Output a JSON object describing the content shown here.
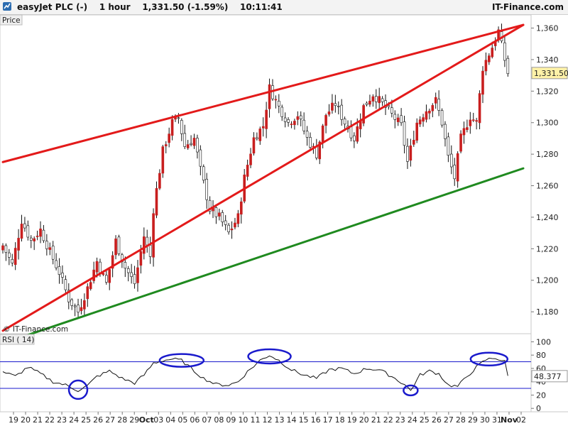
{
  "header": {
    "symbol": "easyJet PLC (-)",
    "interval": "1 hour",
    "last": "1,331.50",
    "change": "(-1.59%)",
    "time": "10:11:41",
    "brand": "IT-Finance.com"
  },
  "price_panel": {
    "label": "Price",
    "watermark": "© IT-Finance.com",
    "last_price_badge": "1,331.50"
  },
  "rsi_panel": {
    "label": "RSI ( 14)",
    "value_badge": "48.377"
  },
  "colors": {
    "upper_trend": "#e31a1a",
    "lower_trend": "#1f8a1f",
    "highlight": "#1a1acc",
    "bull": "#c81e1e",
    "bear": "#111111"
  },
  "chart_data": [
    {
      "type": "candlestick",
      "title": "",
      "xlabel": "",
      "ylabel": "",
      "ylim": [
        1167,
        1367
      ],
      "y_ticks": [
        "1,180",
        "1,200",
        "1,220",
        "1,240",
        "1,260",
        "1,280",
        "1,300",
        "1,320",
        "1,340",
        "1,360"
      ],
      "y_tick_values": [
        1180,
        1200,
        1220,
        1240,
        1260,
        1280,
        1300,
        1320,
        1340,
        1360
      ],
      "x_ticks": [
        "19",
        "20",
        "21",
        "22",
        "23",
        "24",
        "25",
        "26",
        "27",
        "28",
        "29",
        "Oct",
        "03",
        "04",
        "05",
        "06",
        "07",
        "08",
        "09",
        "10",
        "11",
        "12",
        "13",
        "14",
        "15",
        "16",
        "17",
        "18",
        "19",
        "20",
        "21",
        "22",
        "23",
        "24",
        "25",
        "26",
        "27",
        "28",
        "29",
        "30",
        "31",
        "Nov",
        "02"
      ],
      "close_path": [
        {
          "i": 0,
          "p": 1222
        },
        {
          "i": 3,
          "p": 1210
        },
        {
          "i": 6,
          "p": 1238
        },
        {
          "i": 9,
          "p": 1225
        },
        {
          "i": 12,
          "p": 1232
        },
        {
          "i": 15,
          "p": 1218
        },
        {
          "i": 18,
          "p": 1205
        },
        {
          "i": 21,
          "p": 1188
        },
        {
          "i": 24,
          "p": 1180
        },
        {
          "i": 27,
          "p": 1195
        },
        {
          "i": 30,
          "p": 1212
        },
        {
          "i": 33,
          "p": 1198
        },
        {
          "i": 36,
          "p": 1225
        },
        {
          "i": 39,
          "p": 1208
        },
        {
          "i": 42,
          "p": 1198
        },
        {
          "i": 45,
          "p": 1228
        },
        {
          "i": 47,
          "p": 1215
        },
        {
          "i": 48,
          "p": 1245
        },
        {
          "i": 51,
          "p": 1282
        },
        {
          "i": 54,
          "p": 1300
        },
        {
          "i": 56,
          "p": 1303
        },
        {
          "i": 58,
          "p": 1285
        },
        {
          "i": 61,
          "p": 1290
        },
        {
          "i": 63,
          "p": 1270
        },
        {
          "i": 66,
          "p": 1245
        },
        {
          "i": 69,
          "p": 1240
        },
        {
          "i": 72,
          "p": 1230
        },
        {
          "i": 75,
          "p": 1240
        },
        {
          "i": 77,
          "p": 1265
        },
        {
          "i": 80,
          "p": 1290
        },
        {
          "i": 83,
          "p": 1298
        },
        {
          "i": 85,
          "p": 1322
        },
        {
          "i": 88,
          "p": 1310
        },
        {
          "i": 91,
          "p": 1300
        },
        {
          "i": 94,
          "p": 1305
        },
        {
          "i": 97,
          "p": 1290
        },
        {
          "i": 100,
          "p": 1280
        },
        {
          "i": 103,
          "p": 1305
        },
        {
          "i": 106,
          "p": 1312
        },
        {
          "i": 109,
          "p": 1300
        },
        {
          "i": 112,
          "p": 1290
        },
        {
          "i": 115,
          "p": 1310
        },
        {
          "i": 118,
          "p": 1318
        },
        {
          "i": 121,
          "p": 1312
        },
        {
          "i": 124,
          "p": 1305
        },
        {
          "i": 127,
          "p": 1298
        },
        {
          "i": 129,
          "p": 1275
        },
        {
          "i": 132,
          "p": 1300
        },
        {
          "i": 135,
          "p": 1308
        },
        {
          "i": 138,
          "p": 1314
        },
        {
          "i": 140,
          "p": 1300
        },
        {
          "i": 142,
          "p": 1278
        },
        {
          "i": 144,
          "p": 1265
        },
        {
          "i": 146,
          "p": 1290
        },
        {
          "i": 149,
          "p": 1304
        },
        {
          "i": 151,
          "p": 1300
        },
        {
          "i": 153,
          "p": 1335
        },
        {
          "i": 156,
          "p": 1348
        },
        {
          "i": 158,
          "p": 1358
        },
        {
          "i": 160,
          "p": 1340
        },
        {
          "i": 161,
          "p": 1331.5
        }
      ],
      "trendlines": [
        {
          "name": "",
          "from": {
            "i": 0,
            "p": 1275
          },
          "to": {
            "i": 165,
            "p": 1362
          }
        },
        {
          "name": "",
          "from": {
            "i": 0,
            "p": 1168
          },
          "to": {
            "i": 165,
            "p": 1362
          }
        },
        {
          "name": "",
          "from": {
            "i": 6,
            "p": 1164
          },
          "to": {
            "i": 165,
            "p": 1271
          }
        }
      ]
    },
    {
      "type": "line",
      "title": "",
      "ylim": [
        -3,
        110
      ],
      "y_ticks": [
        "0",
        "20",
        "40",
        "60",
        "80",
        "100"
      ],
      "y_tick_values": [
        0,
        20,
        40,
        60,
        80,
        100
      ],
      "levels": [
        70,
        30
      ],
      "rsi_path": [
        {
          "i": 0,
          "p": 55
        },
        {
          "i": 4,
          "p": 48
        },
        {
          "i": 8,
          "p": 62
        },
        {
          "i": 12,
          "p": 52
        },
        {
          "i": 16,
          "p": 40
        },
        {
          "i": 20,
          "p": 35
        },
        {
          "i": 24,
          "p": 27
        },
        {
          "i": 27,
          "p": 34
        },
        {
          "i": 30,
          "p": 48
        },
        {
          "i": 34,
          "p": 56
        },
        {
          "i": 38,
          "p": 45
        },
        {
          "i": 42,
          "p": 38
        },
        {
          "i": 45,
          "p": 50
        },
        {
          "i": 48,
          "p": 68
        },
        {
          "i": 51,
          "p": 72
        },
        {
          "i": 54,
          "p": 74
        },
        {
          "i": 57,
          "p": 72
        },
        {
          "i": 60,
          "p": 60
        },
        {
          "i": 64,
          "p": 45
        },
        {
          "i": 68,
          "p": 36
        },
        {
          "i": 72,
          "p": 35
        },
        {
          "i": 75,
          "p": 40
        },
        {
          "i": 78,
          "p": 55
        },
        {
          "i": 82,
          "p": 72
        },
        {
          "i": 85,
          "p": 80
        },
        {
          "i": 88,
          "p": 72
        },
        {
          "i": 92,
          "p": 58
        },
        {
          "i": 96,
          "p": 50
        },
        {
          "i": 100,
          "p": 45
        },
        {
          "i": 104,
          "p": 58
        },
        {
          "i": 108,
          "p": 60
        },
        {
          "i": 112,
          "p": 52
        },
        {
          "i": 116,
          "p": 60
        },
        {
          "i": 120,
          "p": 58
        },
        {
          "i": 124,
          "p": 48
        },
        {
          "i": 128,
          "p": 36
        },
        {
          "i": 130,
          "p": 27
        },
        {
          "i": 133,
          "p": 50
        },
        {
          "i": 136,
          "p": 56
        },
        {
          "i": 139,
          "p": 52
        },
        {
          "i": 142,
          "p": 35
        },
        {
          "i": 145,
          "p": 33
        },
        {
          "i": 148,
          "p": 48
        },
        {
          "i": 151,
          "p": 62
        },
        {
          "i": 154,
          "p": 73
        },
        {
          "i": 157,
          "p": 76
        },
        {
          "i": 160,
          "p": 70
        },
        {
          "i": 161,
          "p": 48.4
        }
      ]
    }
  ]
}
